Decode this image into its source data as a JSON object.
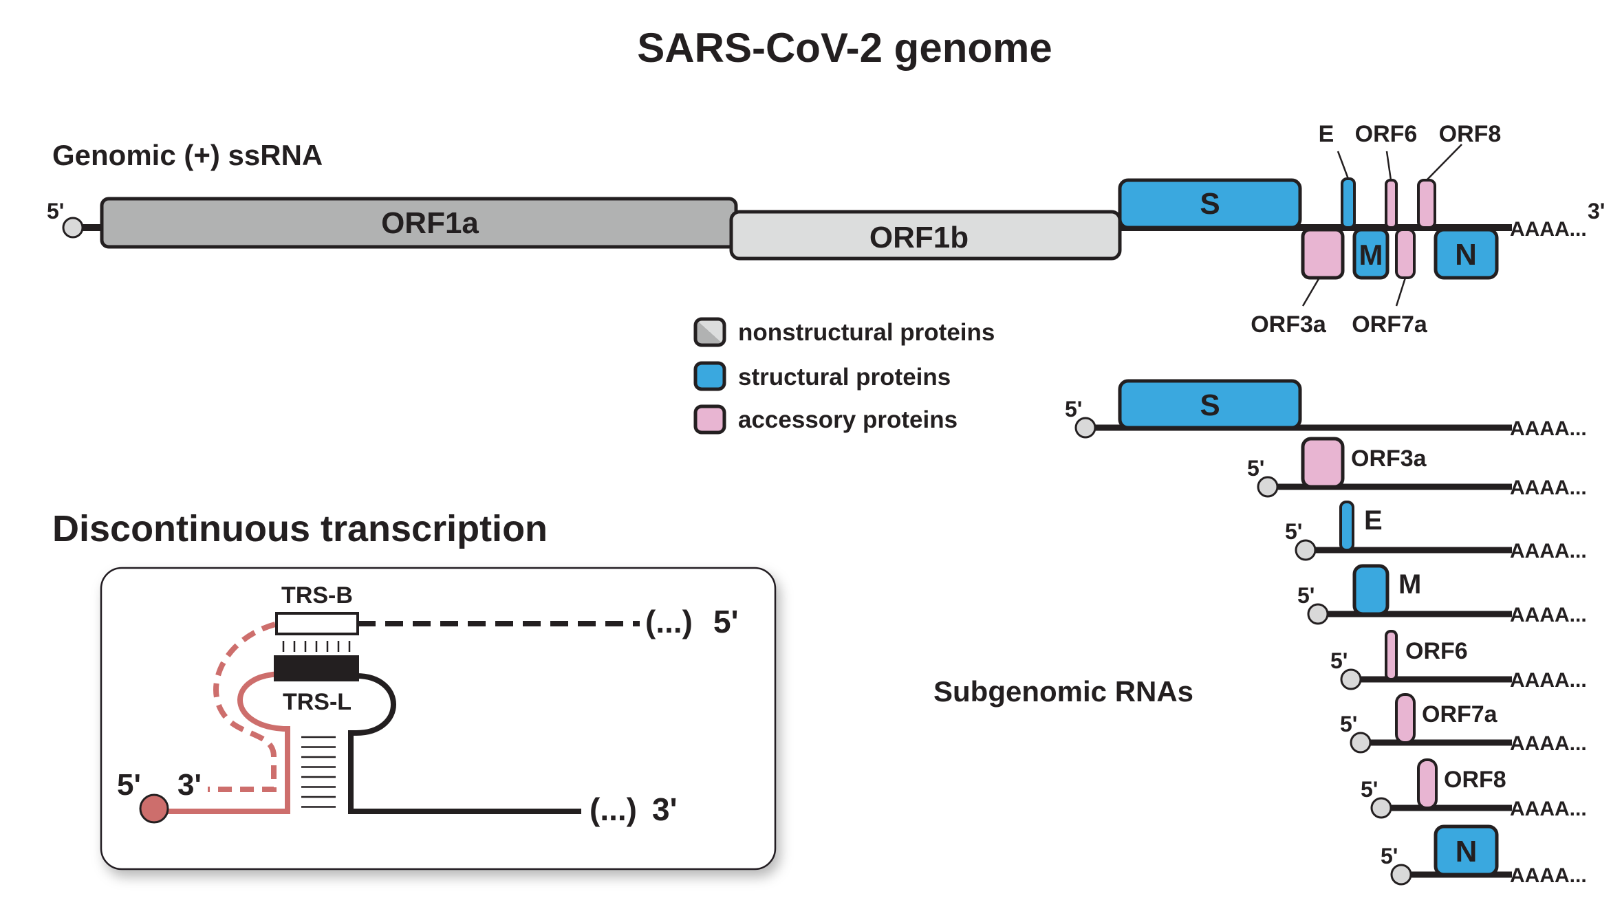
{
  "title": "SARS-CoV-2 genome",
  "genomic": {
    "label": "Genomic (+) ssRNA",
    "five_prime": "5'",
    "three_prime": "3'",
    "polyA": "AAAA...",
    "orf1a": "ORF1a",
    "orf1b": "ORF1b",
    "S": "S",
    "E": "E",
    "ORF6": "ORF6",
    "ORF8": "ORF8",
    "ORF3a": "ORF3a",
    "M": "M",
    "ORF7a": "ORF7a",
    "N": "N"
  },
  "legend": {
    "nonstructural": "nonstructural proteins",
    "structural": "structural proteins",
    "accessory": "accessory proteins"
  },
  "subgenomic": {
    "label": "Subgenomic RNAs",
    "five_prime": "5'",
    "polyA": "AAAA...",
    "rnas": [
      {
        "name": "S",
        "type": "structural"
      },
      {
        "name": "ORF3a",
        "type": "accessory"
      },
      {
        "name": "E",
        "type": "structural"
      },
      {
        "name": "M",
        "type": "structural"
      },
      {
        "name": "ORF6",
        "type": "accessory"
      },
      {
        "name": "ORF7a",
        "type": "accessory"
      },
      {
        "name": "ORF8",
        "type": "accessory"
      },
      {
        "name": "N",
        "type": "structural"
      }
    ]
  },
  "transcription": {
    "label": "Discontinuous transcription",
    "trs_b": "TRS-B",
    "trs_l": "TRS-L",
    "five_prime_right": "5'",
    "ellipsis_top": "(...)",
    "five_prime_left": "5'",
    "three_prime_left": "3'",
    "ellipsis_bottom": "(...)",
    "three_prime_bottom": "3'"
  },
  "colors": {
    "structural": "#3aa8df",
    "accessory": "#e8b5d2",
    "nonstructural_dark": "#b1b2b2",
    "nonstructural_light": "#dcdddd",
    "outline": "#231f20",
    "nascent": "#cd6e6c",
    "cap": "#d9d9d9"
  }
}
